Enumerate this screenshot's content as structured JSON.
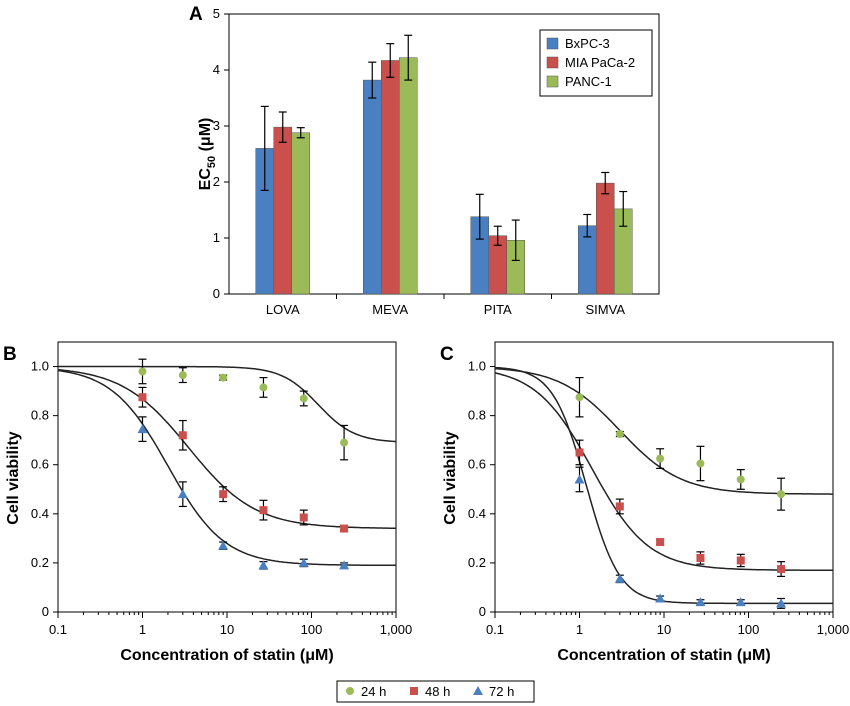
{
  "panels": {
    "a": "A",
    "b": "B",
    "c": "C"
  },
  "colors": {
    "BxPC-3": "#4a7fc1",
    "MIA PaCa-2": "#c9504d",
    "PANC-1": "#9bbb59",
    "24 h": "#9bbb59",
    "48 h": "#c9504d",
    "72 h": "#4a7fc1"
  },
  "chart_data": [
    {
      "id": "A",
      "type": "bar",
      "ylabel_main": "EC",
      "ylabel_sub": "50",
      "ylabel_unit": " (μM)",
      "categories": [
        "LOVA",
        "MEVA",
        "PITA",
        "SIMVA"
      ],
      "ylim": [
        0,
        5
      ],
      "yticks": [
        "0",
        "1",
        "2",
        "3",
        "4",
        "5"
      ],
      "legend_position": "top-right",
      "series": [
        {
          "name": "BxPC-3",
          "values": [
            2.6,
            3.82,
            1.38,
            1.22
          ],
          "errors": [
            0.75,
            0.32,
            0.4,
            0.2
          ]
        },
        {
          "name": "MIA PaCa-2",
          "values": [
            2.98,
            4.17,
            1.04,
            1.98
          ],
          "errors": [
            0.27,
            0.3,
            0.17,
            0.19
          ]
        },
        {
          "name": "PANC-1",
          "values": [
            2.88,
            4.22,
            0.96,
            1.52
          ],
          "errors": [
            0.09,
            0.4,
            0.36,
            0.31
          ]
        }
      ]
    },
    {
      "id": "B",
      "type": "scatter",
      "xscale": "log",
      "xlim": [
        0.1,
        1000
      ],
      "ylim": [
        0,
        1.1
      ],
      "xlabel": "Concentration of statin (μM)",
      "ylabel": "Cell viability",
      "xticks": [
        "0.1",
        "1",
        "10",
        "100",
        "1,000"
      ],
      "yticks": [
        "0",
        "0.2",
        "0.4",
        "0.6",
        "0.8",
        "1.0"
      ],
      "series": [
        {
          "name": "24 h",
          "marker": "circle",
          "x": [
            1,
            3,
            9,
            27,
            81,
            243
          ],
          "y": [
            0.98,
            0.965,
            0.955,
            0.915,
            0.87,
            0.69
          ],
          "errors": [
            0.05,
            0.03,
            0.01,
            0.04,
            0.03,
            0.07
          ],
          "fit": {
            "bottom": 0.69,
            "top": 1.0,
            "ec50": 120,
            "hill": 2.0
          }
        },
        {
          "name": "48 h",
          "marker": "square",
          "x": [
            1,
            3,
            9,
            27,
            81,
            243
          ],
          "y": [
            0.875,
            0.72,
            0.48,
            0.415,
            0.385,
            0.34
          ],
          "errors": [
            0.04,
            0.06,
            0.03,
            0.04,
            0.03,
            0.01
          ],
          "fit": {
            "bottom": 0.34,
            "top": 1.0,
            "ec50": 3.5,
            "hill": 1.1
          }
        },
        {
          "name": "72 h",
          "marker": "triangle",
          "x": [
            1,
            3,
            9,
            27,
            81,
            243
          ],
          "y": [
            0.745,
            0.48,
            0.27,
            0.19,
            0.2,
            0.19
          ],
          "errors": [
            0.05,
            0.05,
            0.015,
            0.015,
            0.015,
            0.01
          ],
          "fit": {
            "bottom": 0.19,
            "top": 1.0,
            "ec50": 2.0,
            "hill": 1.3
          }
        }
      ]
    },
    {
      "id": "C",
      "type": "scatter",
      "xscale": "log",
      "xlim": [
        0.1,
        1000
      ],
      "ylim": [
        0,
        1.1
      ],
      "xlabel": "Concentration of statin (μM)",
      "ylabel": "Cell viability",
      "xticks": [
        "0.1",
        "1",
        "10",
        "100",
        "1,000"
      ],
      "yticks": [
        "0",
        "0.2",
        "0.4",
        "0.6",
        "0.8",
        "1.0"
      ],
      "series": [
        {
          "name": "24 h",
          "marker": "circle",
          "x": [
            1,
            3,
            9,
            27,
            81,
            243
          ],
          "y": [
            0.875,
            0.725,
            0.625,
            0.605,
            0.54,
            0.48
          ],
          "errors": [
            0.08,
            0.01,
            0.04,
            0.07,
            0.04,
            0.065
          ],
          "fit": {
            "bottom": 0.48,
            "top": 1.0,
            "ec50": 3.0,
            "hill": 1.2
          }
        },
        {
          "name": "48 h",
          "marker": "square",
          "x": [
            1,
            3,
            9,
            27,
            81,
            243
          ],
          "y": [
            0.65,
            0.43,
            0.285,
            0.22,
            0.21,
            0.175
          ],
          "errors": [
            0.05,
            0.03,
            0.01,
            0.025,
            0.025,
            0.03
          ],
          "fit": {
            "bottom": 0.17,
            "top": 1.0,
            "ec50": 1.4,
            "hill": 1.3
          }
        },
        {
          "name": "72 h",
          "marker": "triangle",
          "x": [
            1,
            3,
            9,
            27,
            81,
            243
          ],
          "y": [
            0.54,
            0.135,
            0.055,
            0.04,
            0.04,
            0.035
          ],
          "errors": [
            0.05,
            0.015,
            0.01,
            0.01,
            0.01,
            0.02
          ],
          "fit": {
            "bottom": 0.035,
            "top": 1.0,
            "ec50": 1.2,
            "hill": 2.2
          }
        }
      ]
    }
  ],
  "time_legend": [
    "24 h",
    "48 h",
    "72 h"
  ]
}
